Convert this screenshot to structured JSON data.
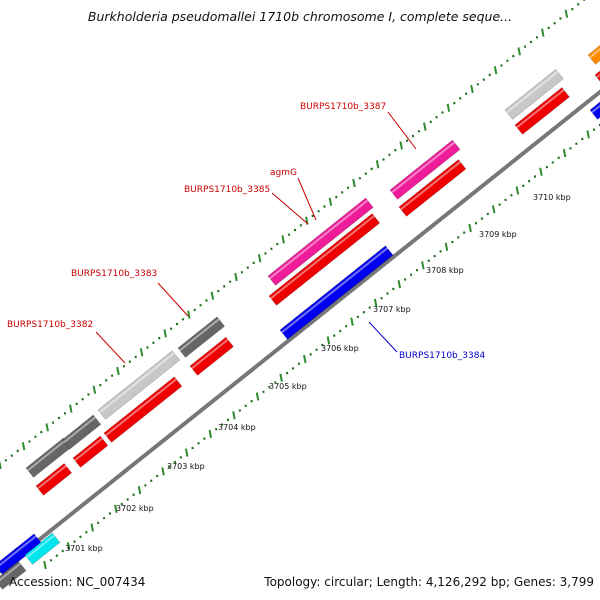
{
  "title": "Burkholderia pseudomallei 1710b chromosome I, complete seque...",
  "footer": {
    "accession_label": "Accession:",
    "accession": "NC_007434",
    "topology_label": "Topology:",
    "topology": "circular",
    "length_label": "Length:",
    "length": "4,126,292 bp",
    "genes_label": "Genes:",
    "genes": "3,799"
  },
  "colors": {
    "backbone": "#777777",
    "tick_major": "#2e8b2e",
    "tick_minor": "#1a6b1a",
    "cds_forward": "#ee0000",
    "cds_reverse": "#0000ee",
    "rna": "#ee1c99",
    "other_dark": "#666666",
    "other_light": "#c8c8c8",
    "cyan": "#00e5ee",
    "orange": "#ff8c00",
    "label_red": "#cc0000",
    "label_blue": "#0000cc"
  },
  "scale_labels": [
    "3701 kbp",
    "3702 kbp",
    "3703 kbp",
    "3704 kbp",
    "3705 kbp",
    "3706 kbp",
    "3707 kbp",
    "3708 kbp",
    "3709 kbp",
    "3710 kbp"
  ],
  "gene_labels": [
    {
      "text": "BURPS1710b_3382",
      "color": "red"
    },
    {
      "text": "BURPS1710b_3383",
      "color": "red"
    },
    {
      "text": "BURPS1710b_3385",
      "color": "red"
    },
    {
      "text": "agmG",
      "color": "red"
    },
    {
      "text": "BURPS1710b_3387",
      "color": "red"
    },
    {
      "text": "BURPS1710b_3384",
      "color": "blue"
    }
  ]
}
